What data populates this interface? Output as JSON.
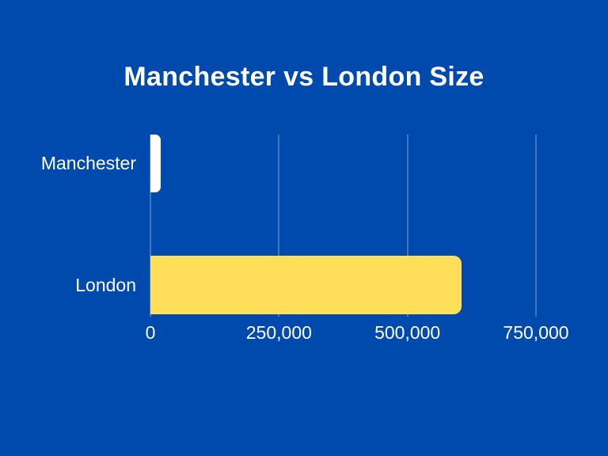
{
  "title": "Manchester vs London Size",
  "colors": {
    "background": "#004AAD",
    "text": "#FFFFFF",
    "gridline": "rgba(255,255,255,0.25)",
    "bar_colors": [
      "#FFFFFF",
      "#FFDE59"
    ]
  },
  "chart_data": {
    "type": "bar",
    "orientation": "horizontal",
    "title": "Manchester vs London Size",
    "categories": [
      "Manchester",
      "London"
    ],
    "values": [
      20000,
      605000
    ],
    "xlabel": "",
    "ylabel": "",
    "xlim": [
      0,
      750000
    ],
    "xticks": [
      0,
      250000,
      500000,
      750000
    ],
    "xtick_labels": [
      "0",
      "250,000",
      "500,000",
      "750,000"
    ],
    "grid": true,
    "legend": false
  }
}
